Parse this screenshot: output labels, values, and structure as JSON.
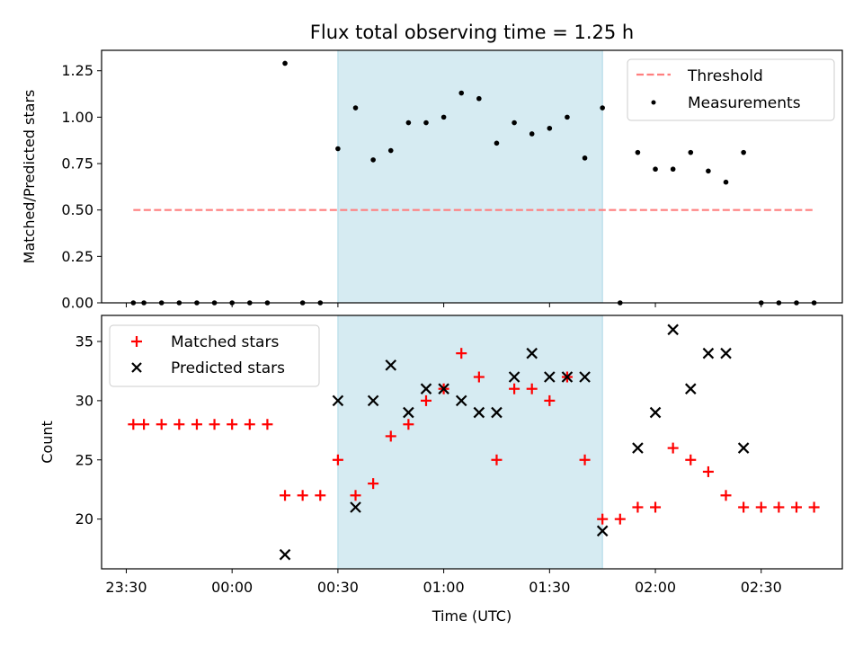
{
  "chart_data": [
    {
      "type": "scatter",
      "title": "Flux total observing time = 1.25 h",
      "xlabel": "",
      "ylabel": "Matched/Predicted stars",
      "ylim": [
        0,
        1.36
      ],
      "yticks": [
        "0.00",
        "0.25",
        "0.50",
        "0.75",
        "1.00",
        "1.25"
      ],
      "ytick_values": [
        0,
        0.25,
        0.5,
        0.75,
        1.0,
        1.25
      ],
      "xlim_minutes_from_2330": [
        -7,
        203
      ],
      "shaded_interval": [
        "00:30",
        "01:45"
      ],
      "shade_color": "#add8e6",
      "legend_position": "top-right",
      "series": [
        {
          "name": "Threshold",
          "kind": "dashed-line",
          "color": "#ff7f7f",
          "x": [
            "23:32",
            "02:45"
          ],
          "y": [
            0.5,
            0.5
          ]
        },
        {
          "name": "Measurements",
          "kind": "points",
          "color": "#000000",
          "x": [
            "23:32",
            "23:35",
            "23:40",
            "23:45",
            "23:50",
            "23:55",
            "00:00",
            "00:05",
            "00:10",
            "00:15",
            "00:20",
            "00:25",
            "00:30",
            "00:35",
            "00:40",
            "00:45",
            "00:50",
            "00:55",
            "01:00",
            "01:05",
            "01:10",
            "01:15",
            "01:20",
            "01:25",
            "01:30",
            "01:35",
            "01:40",
            "01:45",
            "01:50",
            "01:55",
            "02:00",
            "02:05",
            "02:10",
            "02:15",
            "02:20",
            "02:25",
            "02:30",
            "02:35",
            "02:40",
            "02:45"
          ],
          "y": [
            0,
            0,
            0,
            0,
            0,
            0,
            0,
            0,
            0,
            1.29,
            0,
            0,
            0.83,
            1.05,
            0.77,
            0.82,
            0.97,
            0.97,
            1.0,
            1.13,
            1.1,
            0.86,
            0.97,
            0.91,
            0.94,
            1.0,
            0.78,
            1.05,
            0,
            0.81,
            0.72,
            0.72,
            0.81,
            0.71,
            0.65,
            0.81,
            0,
            0,
            0,
            0
          ]
        }
      ]
    },
    {
      "type": "scatter",
      "title": "",
      "xlabel": "Time (UTC)",
      "ylabel": "Count",
      "ylim": [
        15.8,
        37.2
      ],
      "yticks": [
        "20",
        "25",
        "30",
        "35"
      ],
      "ytick_values": [
        20,
        25,
        30,
        35
      ],
      "xticks": [
        "23:30",
        "00:00",
        "00:30",
        "01:00",
        "01:30",
        "02:00",
        "02:30"
      ],
      "xlim_minutes_from_2330": [
        -7,
        203
      ],
      "shaded_interval": [
        "00:30",
        "01:45"
      ],
      "shade_color": "#add8e6",
      "legend_position": "top-left",
      "series": [
        {
          "name": "Matched stars",
          "marker": "plus",
          "color": "#ff0000",
          "x": [
            "23:32",
            "23:35",
            "23:40",
            "23:45",
            "23:50",
            "23:55",
            "00:00",
            "00:05",
            "00:10",
            "00:15",
            "00:20",
            "00:25",
            "00:30",
            "00:35",
            "00:40",
            "00:45",
            "00:50",
            "00:55",
            "01:00",
            "01:05",
            "01:10",
            "01:15",
            "01:20",
            "01:25",
            "01:30",
            "01:35",
            "01:40",
            "01:45",
            "01:50",
            "01:55",
            "02:00",
            "02:05",
            "02:10",
            "02:15",
            "02:20",
            "02:25",
            "02:30",
            "02:35",
            "02:40",
            "02:45"
          ],
          "y": [
            28,
            28,
            28,
            28,
            28,
            28,
            28,
            28,
            28,
            22,
            22,
            22,
            25,
            22,
            23,
            27,
            28,
            30,
            31,
            34,
            32,
            25,
            31,
            31,
            30,
            32,
            25,
            20,
            20,
            21,
            21,
            26,
            25,
            24,
            22,
            21,
            21,
            21,
            21,
            21
          ]
        },
        {
          "name": "Predicted stars",
          "marker": "x",
          "color": "#000000",
          "x": [
            "00:15",
            "00:30",
            "00:35",
            "00:40",
            "00:45",
            "00:50",
            "00:55",
            "01:00",
            "01:05",
            "01:10",
            "01:15",
            "01:20",
            "01:25",
            "01:30",
            "01:35",
            "01:40",
            "01:45",
            "01:55",
            "02:00",
            "02:05",
            "02:10",
            "02:15",
            "02:20",
            "02:25"
          ],
          "y": [
            17,
            30,
            21,
            30,
            33,
            29,
            31,
            31,
            30,
            29,
            29,
            32,
            34,
            32,
            32,
            32,
            19,
            26,
            29,
            36,
            31,
            34,
            34,
            26
          ]
        }
      ]
    }
  ]
}
